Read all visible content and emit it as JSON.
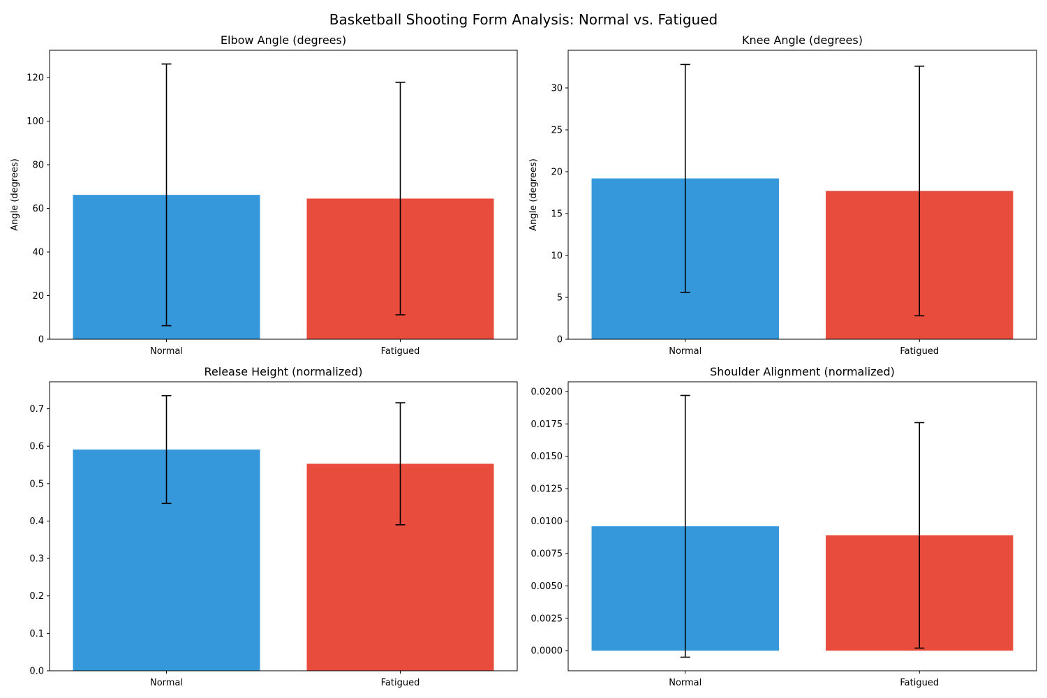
{
  "figure": {
    "title": "Basketball Shooting Form Analysis: Normal vs. Fatigued"
  },
  "chart_data": [
    {
      "type": "bar",
      "title": "Elbow Angle (degrees)",
      "xlabel": "",
      "ylabel": "Angle (degrees)",
      "categories": [
        "Normal",
        "Fatigued"
      ],
      "values": [
        66.2,
        64.5
      ],
      "error": [
        60.0,
        53.3
      ],
      "colors": [
        "#3498db",
        "#e74c3c"
      ],
      "ylim": [
        0,
        132.5
      ],
      "yticks": [
        0,
        20,
        40,
        60,
        80,
        100,
        120
      ],
      "ytick_labels": [
        "0",
        "20",
        "40",
        "60",
        "80",
        "100",
        "120"
      ],
      "grid": false
    },
    {
      "type": "bar",
      "title": "Knee Angle (degrees)",
      "xlabel": "",
      "ylabel": "Angle (degrees)",
      "categories": [
        "Normal",
        "Fatigued"
      ],
      "values": [
        19.2,
        17.7
      ],
      "error": [
        13.6,
        14.9
      ],
      "colors": [
        "#3498db",
        "#e74c3c"
      ],
      "ylim": [
        0,
        34.5
      ],
      "yticks": [
        0,
        5,
        10,
        15,
        20,
        25,
        30
      ],
      "ytick_labels": [
        "0",
        "5",
        "10",
        "15",
        "20",
        "25",
        "30"
      ],
      "grid": false
    },
    {
      "type": "bar",
      "title": "Release Height (normalized)",
      "xlabel": "",
      "ylabel": "",
      "categories": [
        "Normal",
        "Fatigued"
      ],
      "values": [
        0.591,
        0.553
      ],
      "error": [
        0.144,
        0.163
      ],
      "colors": [
        "#3498db",
        "#e74c3c"
      ],
      "ylim": [
        0,
        0.772
      ],
      "yticks": [
        0,
        0.1,
        0.2,
        0.3,
        0.4,
        0.5,
        0.6,
        0.7
      ],
      "ytick_labels": [
        "0.0",
        "0.1",
        "0.2",
        "0.3",
        "0.4",
        "0.5",
        "0.6",
        "0.7"
      ],
      "grid": false
    },
    {
      "type": "bar",
      "title": "Shoulder Alignment (normalized)",
      "xlabel": "",
      "ylabel": "",
      "categories": [
        "Normal",
        "Fatigued"
      ],
      "values": [
        0.0096,
        0.0089
      ],
      "error": [
        0.0101,
        0.0087
      ],
      "colors": [
        "#3498db",
        "#e74c3c"
      ],
      "ylim": [
        -0.00155,
        0.02075
      ],
      "yticks": [
        0,
        0.0025,
        0.005,
        0.0075,
        0.01,
        0.0125,
        0.015,
        0.0175,
        0.02
      ],
      "ytick_labels": [
        "0.0000",
        "0.0025",
        "0.0050",
        "0.0075",
        "0.0100",
        "0.0125",
        "0.0150",
        "0.0175",
        "0.0200"
      ],
      "grid": false
    }
  ]
}
